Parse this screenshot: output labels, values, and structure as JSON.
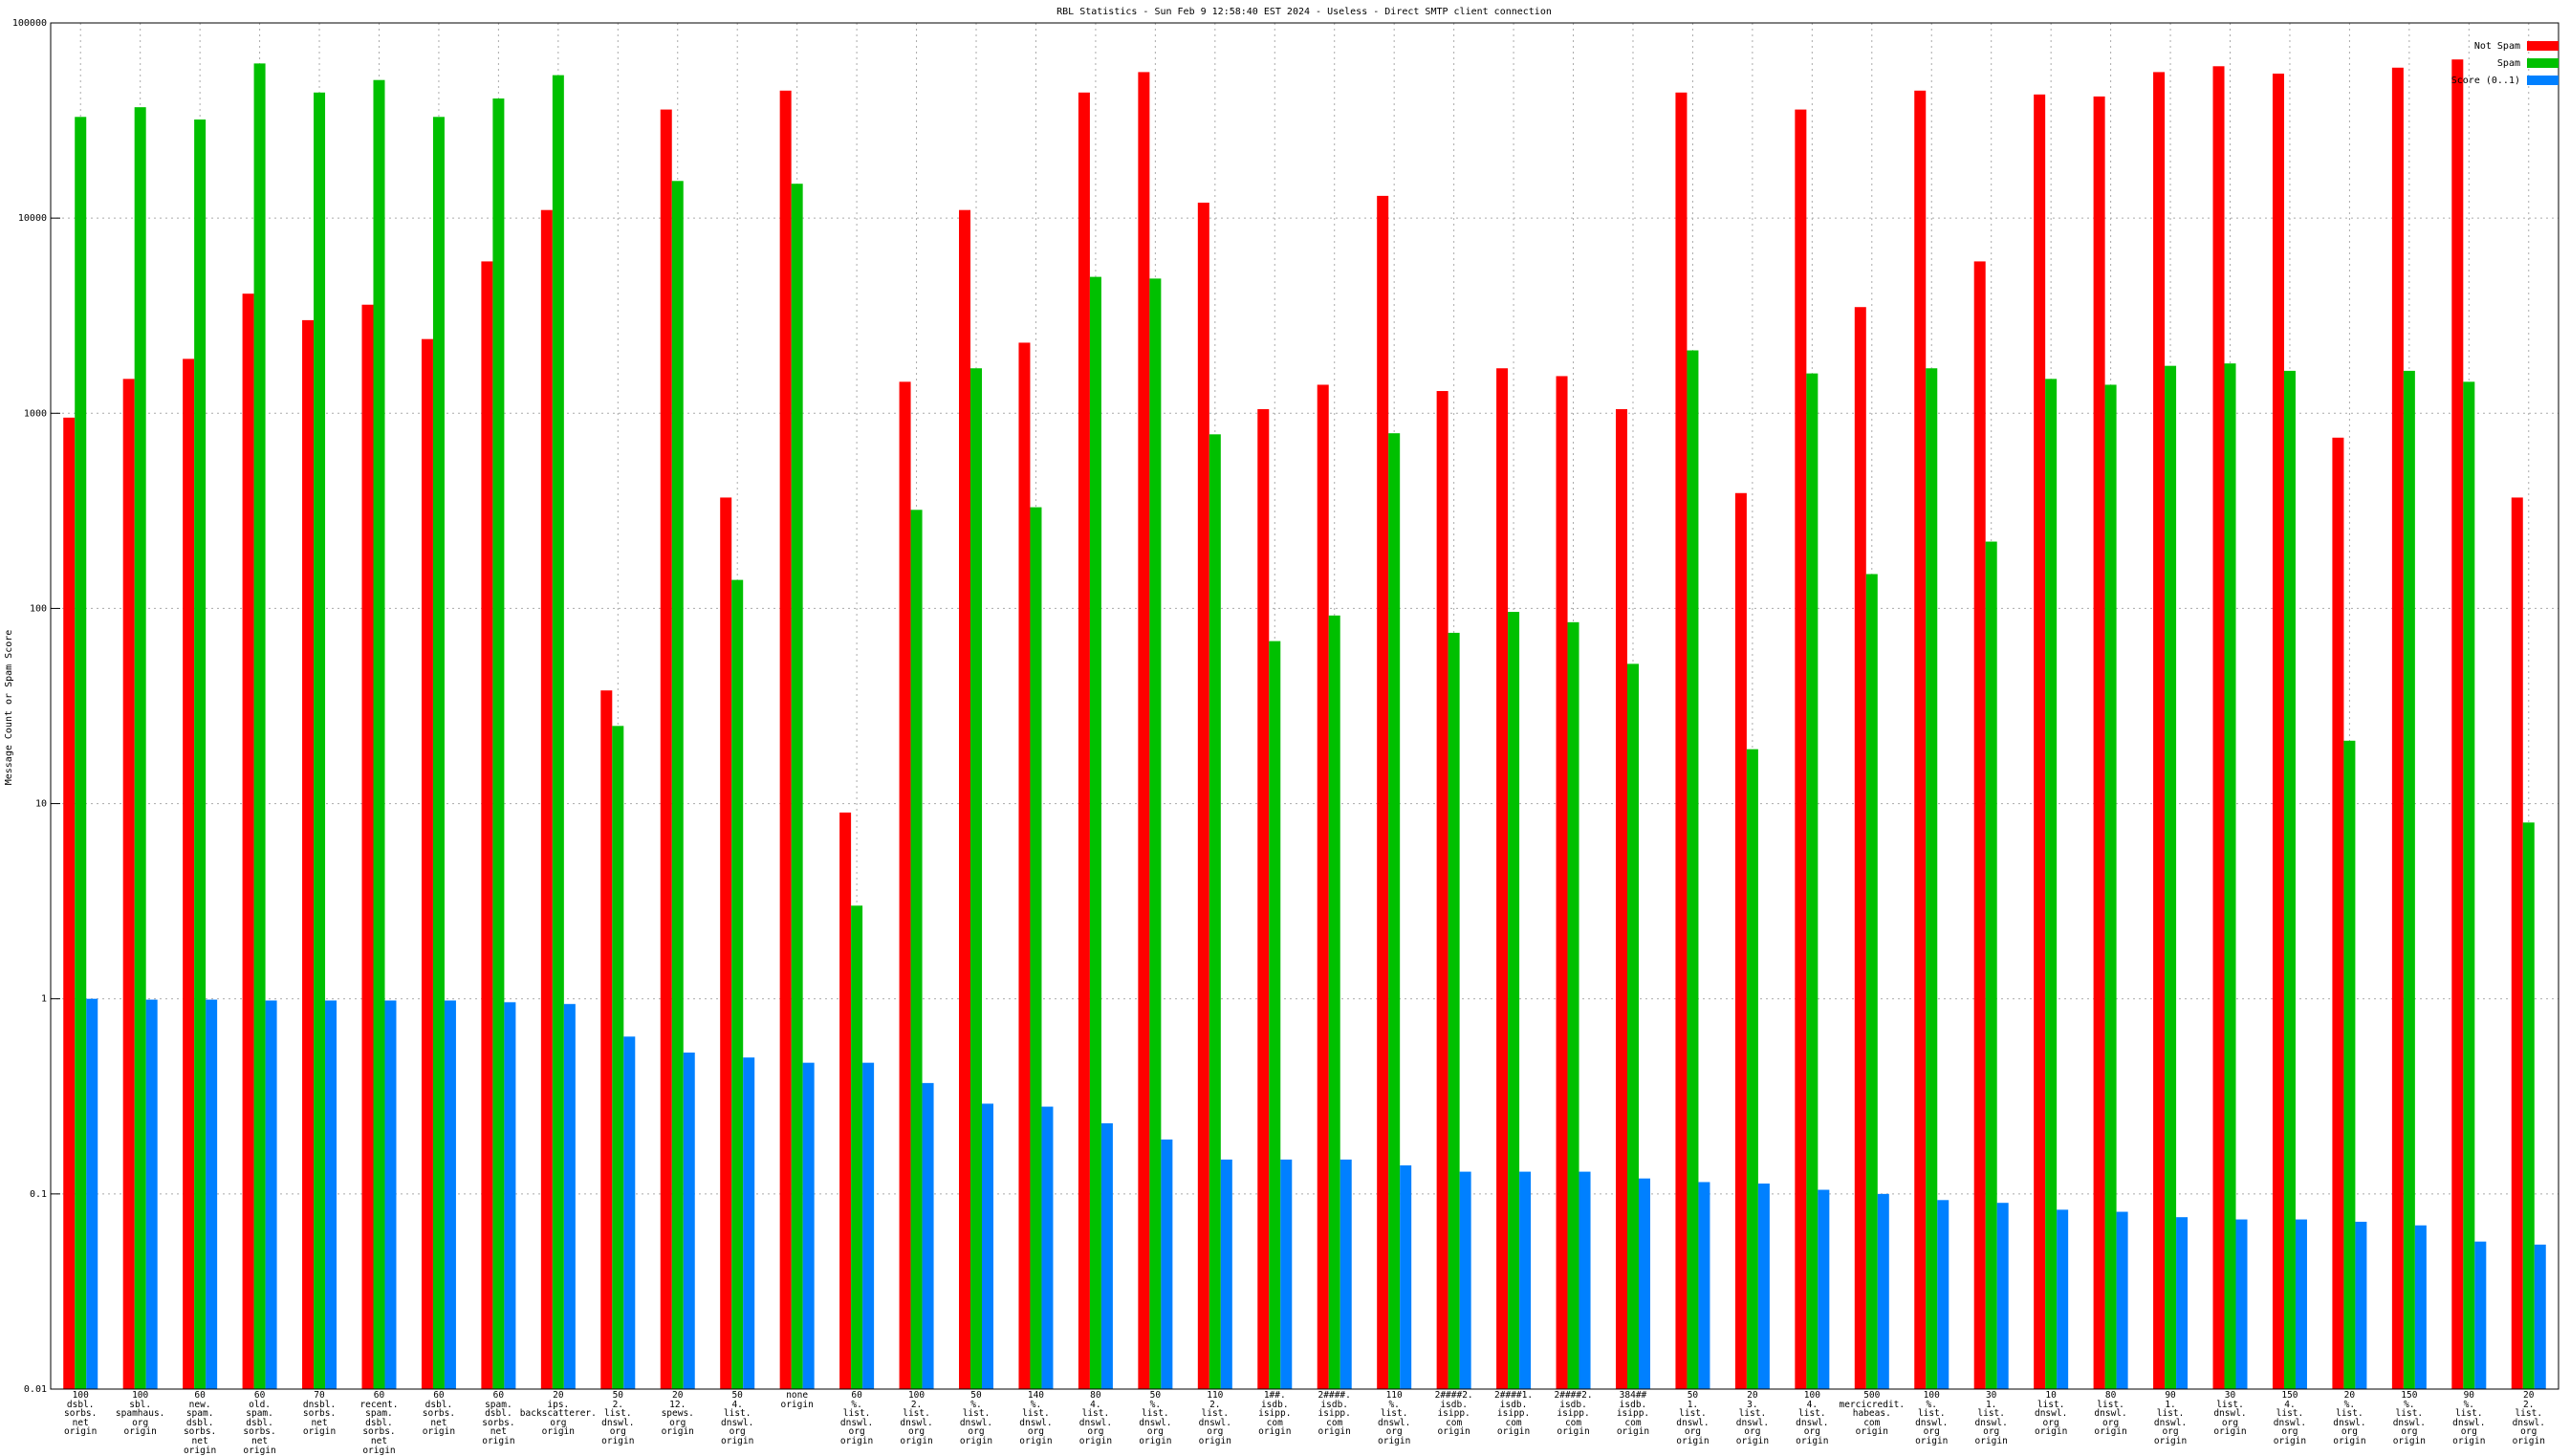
{
  "chart_data": {
    "type": "bar",
    "title": "RBL Statistics - Sun Feb  9 12:58:40 EST 2024 - Useless - Direct SMTP client connection",
    "y_label": "Message Count or Spam Score",
    "log_scale": true,
    "grid": true,
    "legend": "top-right",
    "ylim": [
      0.01,
      100000
    ],
    "yticks": [
      0.01,
      0.1,
      1,
      10,
      100,
      1000,
      10000,
      100000
    ],
    "categories": [
      "100\ndsbl.\nsorbs.\nnet\norigin",
      "100\nsbl.\nspamhaus.\norg\norigin",
      "60\nnew.\nspam.\ndsbl.\nsorbs.\nnet\norigin",
      "60\nold.\nspam.\ndsbl.\nsorbs.\nnet\norigin",
      "70\ndnsbl.\nsorbs.\nnet\norigin",
      "60\nrecent.\nspam.\ndsbl.\nsorbs.\nnet\norigin",
      "60\ndsbl.\nsorbs.\nnet\norigin",
      "60\nspam.\ndsbl.\nsorbs.\nnet\norigin",
      "20\nips.\nbackscatterer.\norg\norigin",
      "50\n2.\nlist.\ndnswl.\norg\norigin",
      "20\n12.\nspews.\norg\norigin",
      "50\n4.\nlist.\ndnswl.\norg\norigin",
      "none\norigin",
      "60\n%.\nlist.\ndnswl.\norg\norigin",
      "100\n2.\nlist.\ndnswl.\norg\norigin",
      "50\n%.\nlist.\ndnswl.\norg\norigin",
      "140\n%.\nlist.\ndnswl.\norg\norigin",
      "80\n4.\nlist.\ndnswl.\norg\norigin",
      "50\n%.\nlist.\ndnswl.\norg\norigin",
      "110\n2.\nlist.\ndnswl.\norg\norigin",
      "1##.\nisdb.\nisipp.\ncom\norigin",
      "2####.\nisdb.\nisipp.\ncom\norigin",
      "110\n%.\nlist.\ndnswl.\norg\norigin",
      "2####2.\nisdb.\nisipp.\ncom\norigin",
      "2####1.\nisdb.\nisipp.\ncom\norigin",
      "2####2.\nisdb.\nisipp.\ncom\norigin",
      "384##\nisdb.\nisipp.\ncom\norigin",
      "50\n1.\nlist.\ndnswl.\norg\norigin",
      "20\n3.\nlist.\ndnswl.\norg\norigin",
      "100\n4.\nlist.\ndnswl.\norg\norigin",
      "500\nmercicredit.\nhabeas.\ncom\norigin",
      "100\n%.\nlist.\ndnswl.\norg\norigin",
      "30\n1.\nlist.\ndnswl.\norg\norigin",
      "10\nlist.\ndnswl.\norg\norigin",
      "80\nlist.\ndnswl.\norg\norigin",
      "90\n1.\nlist.\ndnswl.\norg\norigin",
      "30\nlist.\ndnswl.\norg\norigin",
      "150\n4.\nlist.\ndnswl.\norg\norigin",
      "20\n%.\nlist.\ndnswl.\norg\norigin",
      "150\n%.\nlist.\ndnswl.\norg\norigin",
      "90\n%.\nlist.\ndnswl.\norg\norigin",
      "20\n2.\nlist.\ndnswl.\norg\norigin"
    ],
    "series": [
      {
        "name": "Not Spam",
        "color": "#ff0000",
        "values": [
          950,
          1500,
          1900,
          4100,
          3000,
          3600,
          2400,
          6000,
          11000,
          38,
          36000,
          370,
          45000,
          9,
          1450,
          11000,
          2300,
          44000,
          56000,
          12000,
          1050,
          1400,
          13000,
          1300,
          1700,
          1550,
          1050,
          44000,
          390,
          36000,
          3500,
          45000,
          6000,
          43000,
          42000,
          56000,
          60000,
          55000,
          750,
          59000,
          65000,
          370
        ]
      },
      {
        "name": "Spam",
        "color": "#00c000",
        "values": [
          33000,
          37000,
          32000,
          62000,
          44000,
          51000,
          33000,
          41000,
          54000,
          25,
          15500,
          140,
          15000,
          3,
          320,
          1700,
          330,
          5000,
          4900,
          780,
          68,
          92,
          790,
          75,
          96,
          85,
          52,
          2100,
          19,
          1600,
          150,
          1700,
          220,
          1500,
          1400,
          1750,
          1800,
          1650,
          21,
          1650,
          1450,
          8
        ]
      },
      {
        "name": "Score (0..1)",
        "color": "#0080ff",
        "values": [
          1.0,
          0.99,
          0.99,
          0.98,
          0.98,
          0.98,
          0.98,
          0.96,
          0.94,
          0.64,
          0.53,
          0.5,
          0.47,
          0.47,
          0.37,
          0.29,
          0.28,
          0.23,
          0.19,
          0.15,
          0.15,
          0.15,
          0.14,
          0.13,
          0.13,
          0.13,
          0.12,
          0.115,
          0.113,
          0.105,
          0.1,
          0.093,
          0.09,
          0.083,
          0.081,
          0.076,
          0.074,
          0.074,
          0.072,
          0.069,
          0.057,
          0.055
        ]
      }
    ]
  }
}
